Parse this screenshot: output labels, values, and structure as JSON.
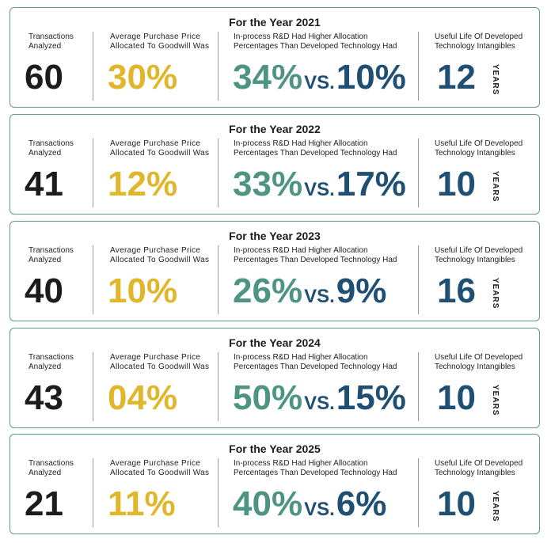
{
  "labels": {
    "transactions": [
      "Transactions",
      "Analyzed"
    ],
    "goodwill": [
      "Average Purchase Price",
      "Allocated To Goodwill Was"
    ],
    "rnd": [
      "In-process R&D Had Higher Allocation",
      "Percentages Than Developed Technology Had"
    ],
    "useful_life": [
      "Useful Life Of Developed",
      "Technology Intangibles"
    ],
    "vs": "VS.",
    "years": "YEARS"
  },
  "cards": [
    {
      "title": "For the Year 2021",
      "transactions": "60",
      "goodwill": "30%",
      "rnd": "34%",
      "dev": "10%",
      "life": "12"
    },
    {
      "title": "For the Year 2022",
      "transactions": "41",
      "goodwill": "12%",
      "rnd": "33%",
      "dev": "17%",
      "life": "10"
    },
    {
      "title": "For the Year 2023",
      "transactions": "40",
      "goodwill": "10%",
      "rnd": "26%",
      "dev": "9%",
      "life": "16"
    },
    {
      "title": "For the Year 2024",
      "transactions": "43",
      "goodwill": "04%",
      "rnd": "50%",
      "dev": "15%",
      "life": "10"
    },
    {
      "title": "For the Year 2025",
      "transactions": "21",
      "goodwill": "11%",
      "rnd": "40%",
      "dev": "6%",
      "life": "10"
    }
  ]
}
